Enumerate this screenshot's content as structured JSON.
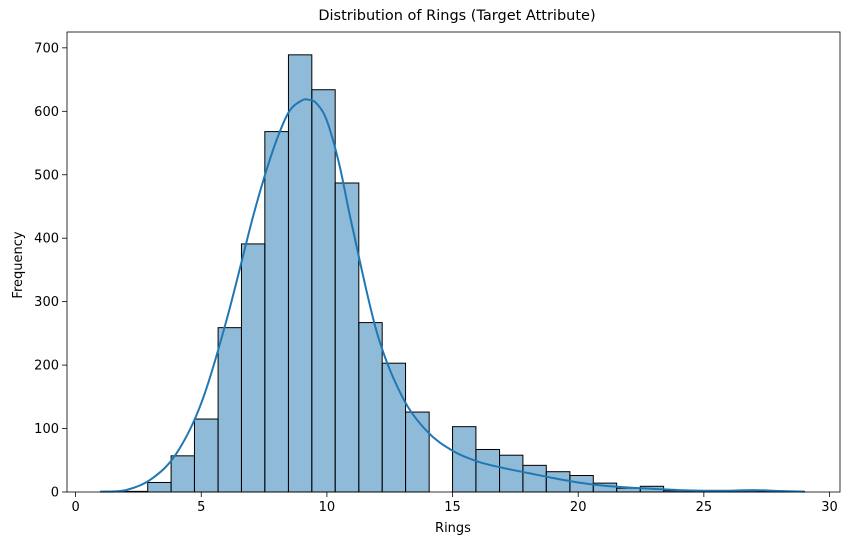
{
  "chart_data": {
    "type": "bar",
    "title": "Distribution of Rings (Target Attribute)",
    "xlabel": "Rings",
    "ylabel": "Frequency",
    "xlim": [
      0,
      30
    ],
    "ylim": [
      0,
      725
    ],
    "xticks": [
      0,
      5,
      10,
      15,
      20,
      25,
      30
    ],
    "yticks": [
      0,
      100,
      200,
      300,
      400,
      500,
      600,
      700
    ],
    "grid": false,
    "bar_color": "#1f77b4",
    "bar_edge_color": "#000000",
    "bins": [
      {
        "x0": 1.0,
        "x1": 1.93,
        "value": 1
      },
      {
        "x0": 1.93,
        "x1": 2.87,
        "value": 1
      },
      {
        "x0": 2.87,
        "x1": 3.8,
        "value": 15
      },
      {
        "x0": 3.8,
        "x1": 4.73,
        "value": 57
      },
      {
        "x0": 4.73,
        "x1": 5.67,
        "value": 115
      },
      {
        "x0": 5.67,
        "x1": 6.6,
        "value": 259
      },
      {
        "x0": 6.6,
        "x1": 7.53,
        "value": 391
      },
      {
        "x0": 7.53,
        "x1": 8.47,
        "value": 568
      },
      {
        "x0": 8.47,
        "x1": 9.4,
        "value": 689
      },
      {
        "x0": 9.4,
        "x1": 10.33,
        "value": 634
      },
      {
        "x0": 10.33,
        "x1": 11.27,
        "value": 487
      },
      {
        "x0": 11.27,
        "x1": 12.2,
        "value": 267
      },
      {
        "x0": 12.2,
        "x1": 13.13,
        "value": 203
      },
      {
        "x0": 13.13,
        "x1": 14.07,
        "value": 126
      },
      {
        "x0": 14.07,
        "x1": 15.0,
        "value": 0
      },
      {
        "x0": 15.0,
        "x1": 15.93,
        "value": 103
      },
      {
        "x0": 15.93,
        "x1": 16.87,
        "value": 67
      },
      {
        "x0": 16.87,
        "x1": 17.8,
        "value": 58
      },
      {
        "x0": 17.8,
        "x1": 18.73,
        "value": 42
      },
      {
        "x0": 18.73,
        "x1": 19.67,
        "value": 32
      },
      {
        "x0": 19.67,
        "x1": 20.6,
        "value": 26
      },
      {
        "x0": 20.6,
        "x1": 21.53,
        "value": 14
      },
      {
        "x0": 21.53,
        "x1": 22.47,
        "value": 6
      },
      {
        "x0": 22.47,
        "x1": 23.4,
        "value": 9
      },
      {
        "x0": 23.4,
        "x1": 24.33,
        "value": 2
      },
      {
        "x0": 24.33,
        "x1": 25.27,
        "value": 1
      },
      {
        "x0": 25.27,
        "x1": 26.2,
        "value": 1
      },
      {
        "x0": 26.2,
        "x1": 27.13,
        "value": 2
      },
      {
        "x0": 27.13,
        "x1": 28.07,
        "value": 1
      },
      {
        "x0": 28.07,
        "x1": 29.0,
        "value": 1
      }
    ],
    "kde": {
      "x": [
        1,
        2,
        3,
        4,
        5,
        6,
        7,
        7.5,
        8,
        8.5,
        9,
        9.3,
        9.6,
        10,
        10.5,
        11,
        12,
        13,
        14,
        15,
        16,
        17,
        18,
        19,
        20,
        21,
        22,
        23,
        24,
        25,
        26,
        27,
        28,
        29
      ],
      "y": [
        0.5,
        3,
        20,
        60,
        140,
        270,
        425,
        495,
        555,
        600,
        617,
        618,
        612,
        585,
        515,
        420,
        250,
        150,
        95,
        65,
        48,
        38,
        30,
        22,
        15,
        10,
        7,
        5,
        3,
        2,
        2,
        3,
        1.5,
        0.5
      ]
    }
  }
}
